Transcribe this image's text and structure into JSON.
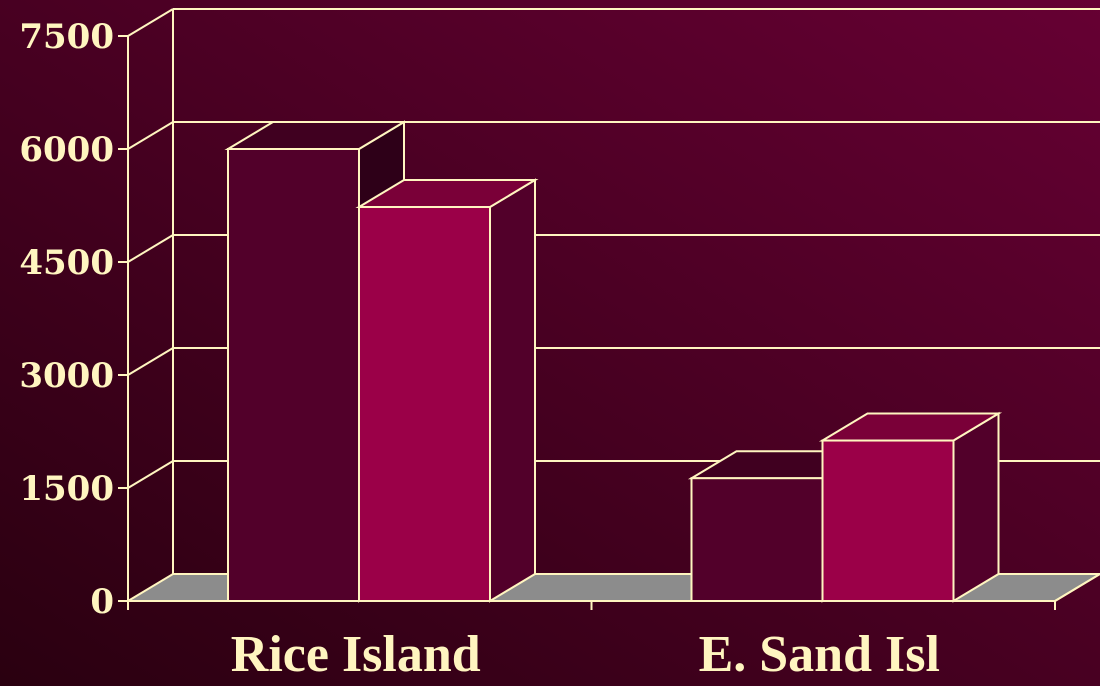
{
  "chart_data": {
    "type": "bar",
    "title": "",
    "xlabel": "",
    "ylabel": "",
    "categories": [
      "Rice Island",
      "E. Sand Isl"
    ],
    "series": [
      {
        "values": [
          6000,
          1630
        ]
      },
      {
        "values": [
          5230,
          2130
        ]
      }
    ],
    "ylim": [
      0,
      7500
    ],
    "yticks": [
      "0",
      "1500",
      "3000",
      "4500",
      "6000",
      "7500"
    ],
    "gridlines": true,
    "legend": "none",
    "style": "3d"
  },
  "colors": {
    "background_dark": "#2a0010",
    "background_light": "#660033",
    "series_1_front": "#52002a",
    "series_1_top": "#400020",
    "series_1_side": "#2e0018",
    "series_2_front": "#9b0048",
    "series_2_top": "#7a0038",
    "series_2_side": "#52002a",
    "floor": "#8c8c8c",
    "lines": "#fff5c0"
  }
}
